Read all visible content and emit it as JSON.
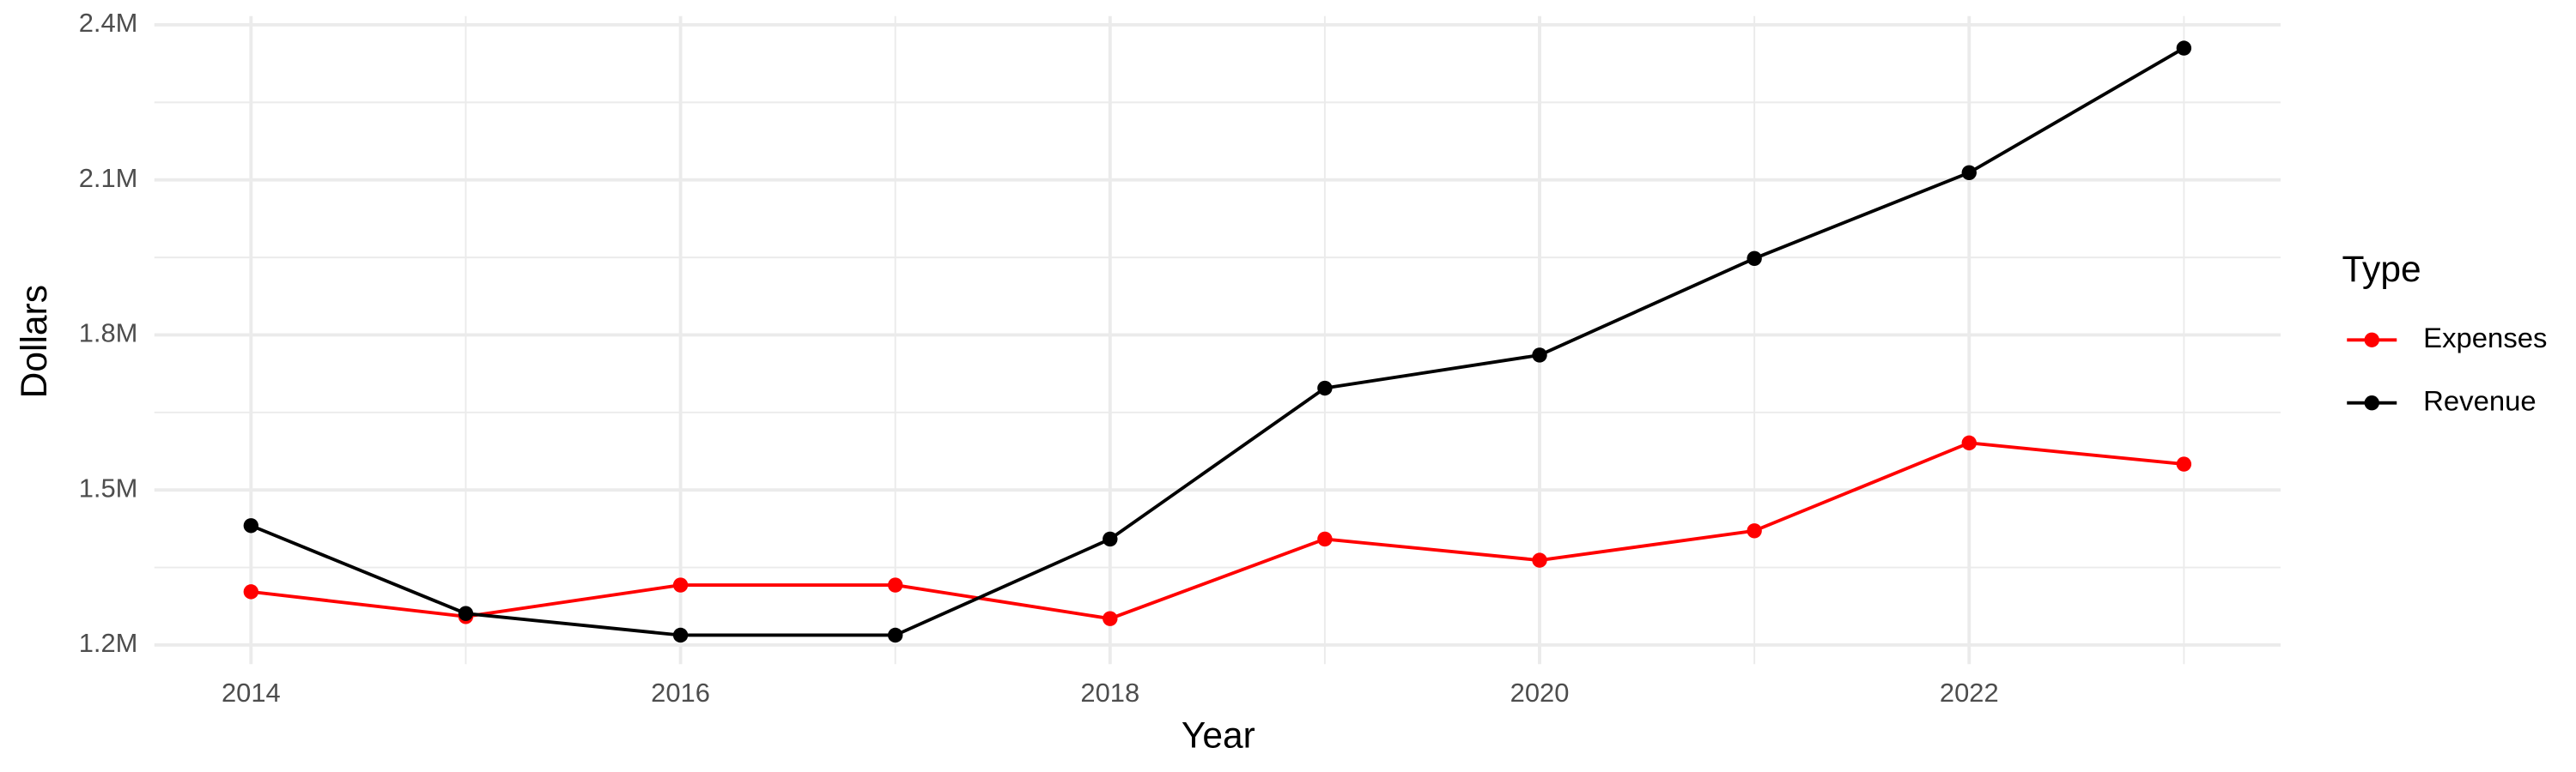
{
  "chart_data": {
    "type": "line",
    "x_label": "Year",
    "y_label": "Dollars",
    "legend_title": "Type",
    "legend_position": "right",
    "grid": true,
    "minor_grid": true,
    "x": [
      2014,
      2015,
      2016,
      2017,
      2018,
      2019,
      2020,
      2021,
      2022,
      2023
    ],
    "series": [
      {
        "name": "Expenses",
        "color": "#ff0000",
        "values": [
          1303000,
          1255000,
          1316000,
          1316000,
          1251000,
          1405000,
          1364000,
          1421000,
          1591000,
          1550000
        ]
      },
      {
        "name": "Revenue",
        "color": "#000000",
        "values": [
          1431000,
          1261000,
          1219000,
          1219000,
          1405000,
          1697000,
          1761000,
          1948000,
          2114000,
          2355000
        ]
      }
    ],
    "xlim": [
      2013.55,
      2023.45
    ],
    "xticks": [
      2014,
      2016,
      2018,
      2020,
      2022
    ],
    "xminor": [
      2015,
      2017,
      2019,
      2021,
      2023
    ],
    "ylim": [
      1163000,
      2417000
    ],
    "yticks": [
      {
        "value": 1200000,
        "label": "1.2M"
      },
      {
        "value": 1500000,
        "label": "1.5M"
      },
      {
        "value": 1800000,
        "label": "1.8M"
      },
      {
        "value": 2100000,
        "label": "2.1M"
      },
      {
        "value": 2400000,
        "label": "2.4M"
      }
    ]
  }
}
